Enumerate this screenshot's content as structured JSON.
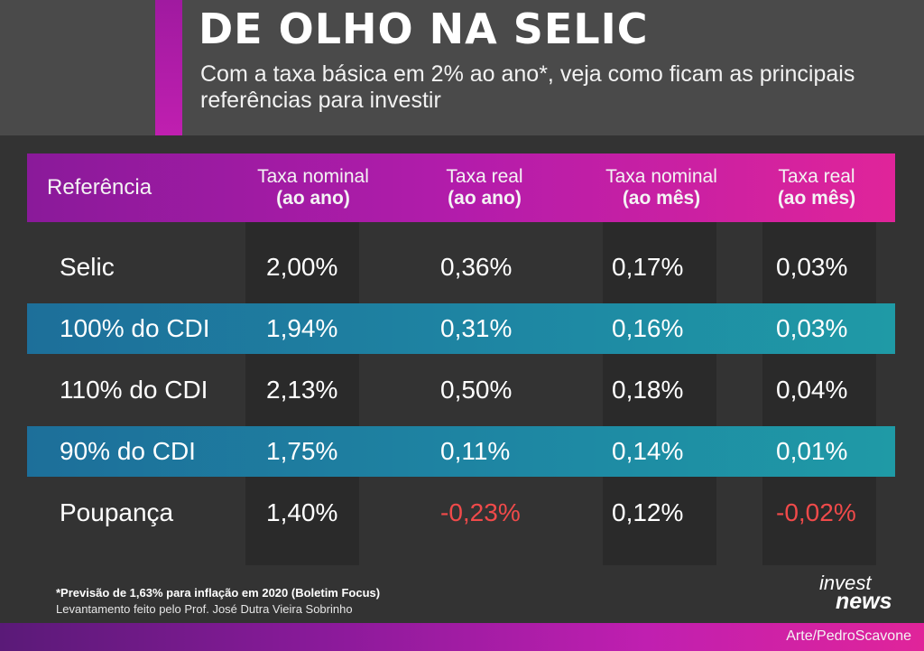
{
  "header": {
    "title": "DE OLHO NA SELIC",
    "subtitle": "Com a taxa básica em 2% ao ano*, veja como ficam as principais referências para investir"
  },
  "table": {
    "columns": [
      {
        "line1": "Referência",
        "line2": ""
      },
      {
        "line1": "Taxa nominal",
        "line2": "(ao ano)"
      },
      {
        "line1": "Taxa real",
        "line2": "(ao ano)"
      },
      {
        "line1": "Taxa nominal",
        "line2": "(ao mês)"
      },
      {
        "line1": "Taxa real",
        "line2": "(ao mês)"
      }
    ],
    "rows": [
      {
        "ref": "Selic",
        "nominal_ano": "2,00%",
        "real_ano": "0,36%",
        "nominal_mes": "0,17%",
        "real_mes": "0,03%"
      },
      {
        "ref": "100% do CDI",
        "nominal_ano": "1,94%",
        "real_ano": "0,31%",
        "nominal_mes": "0,16%",
        "real_mes": "0,03%"
      },
      {
        "ref": "110% do CDI",
        "nominal_ano": "2,13%",
        "real_ano": "0,50%",
        "nominal_mes": "0,18%",
        "real_mes": "0,04%"
      },
      {
        "ref": "90% do CDI",
        "nominal_ano": "1,75%",
        "real_ano": "0,11%",
        "nominal_mes": "0,14%",
        "real_mes": "0,01%"
      },
      {
        "ref": "Poupança",
        "nominal_ano": "1,40%",
        "real_ano": "-0,23%",
        "nominal_mes": "0,12%",
        "real_mes": "-0,02%"
      }
    ]
  },
  "footer": {
    "note": "*Previsão de 1,63% para inflação em 2020 (Boletim Focus)",
    "source": "Levantamento feito pelo Prof. José Dutra Vieira Sobrinho",
    "credit": "Arte/PedroScavone",
    "logo_line1": "invest",
    "logo_line2": "news"
  },
  "colors": {
    "accent_magenta": "#c01fb0",
    "highlight_blue": "#1e86a3",
    "negative_red": "#f04a4a"
  }
}
